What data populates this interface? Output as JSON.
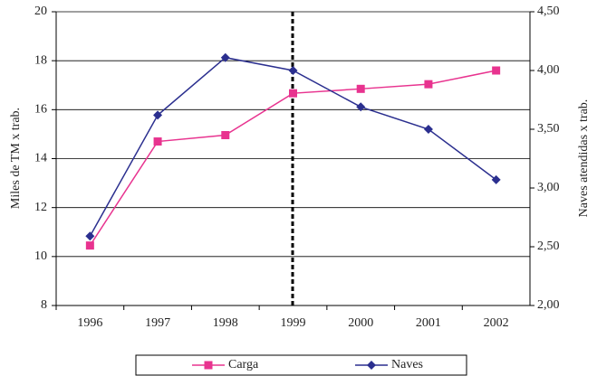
{
  "chart_data": {
    "type": "line",
    "y_label": "Miles de TM x trab.",
    "y2_label": "Naves atendidas x trab.",
    "categories": [
      "1996",
      "1997",
      "1998",
      "1999",
      "2000",
      "2001",
      "2002"
    ],
    "series": [
      {
        "name": "Carga",
        "color": "#e8338f",
        "marker": "square",
        "values": [
          10.45,
          14.7,
          14.96,
          16.67,
          16.85,
          17.04,
          17.6
        ]
      },
      {
        "name": "Naves",
        "color": "#2b2f8f",
        "marker": "diamond",
        "axis": "y2",
        "values": [
          2.59,
          3.62,
          4.11,
          4.0,
          3.69,
          3.5,
          3.07
        ]
      }
    ],
    "ylim": [
      8,
      20
    ],
    "yticks": [
      8,
      10,
      12,
      14,
      16,
      18,
      20
    ],
    "y2lim": [
      2,
      4.5
    ],
    "y2ticks": [
      {
        "value": 2,
        "label": "2,00"
      },
      {
        "value": 2.5,
        "label": "2,50"
      },
      {
        "value": 3,
        "label": "3,00"
      },
      {
        "value": 3.5,
        "label": "3,50"
      },
      {
        "value": 4,
        "label": "4,00"
      },
      {
        "value": 4.5,
        "label": "4,50"
      }
    ],
    "grid": true,
    "legend": "bottom"
  }
}
